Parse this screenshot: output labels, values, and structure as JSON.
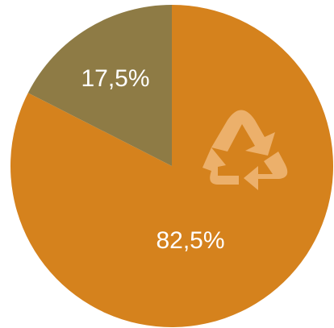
{
  "chart_data": {
    "type": "pie",
    "slices": [
      {
        "label": "82,5%",
        "value": 82.5,
        "color": "#d5821d"
      },
      {
        "label": "17,5%",
        "value": 17.5,
        "color": "#8e7b45"
      }
    ],
    "start_angle_deg": 0,
    "direction": "clockwise",
    "icon": {
      "name": "recycle-icon",
      "color": "#ecb06b"
    },
    "title": "",
    "legend": "none"
  }
}
